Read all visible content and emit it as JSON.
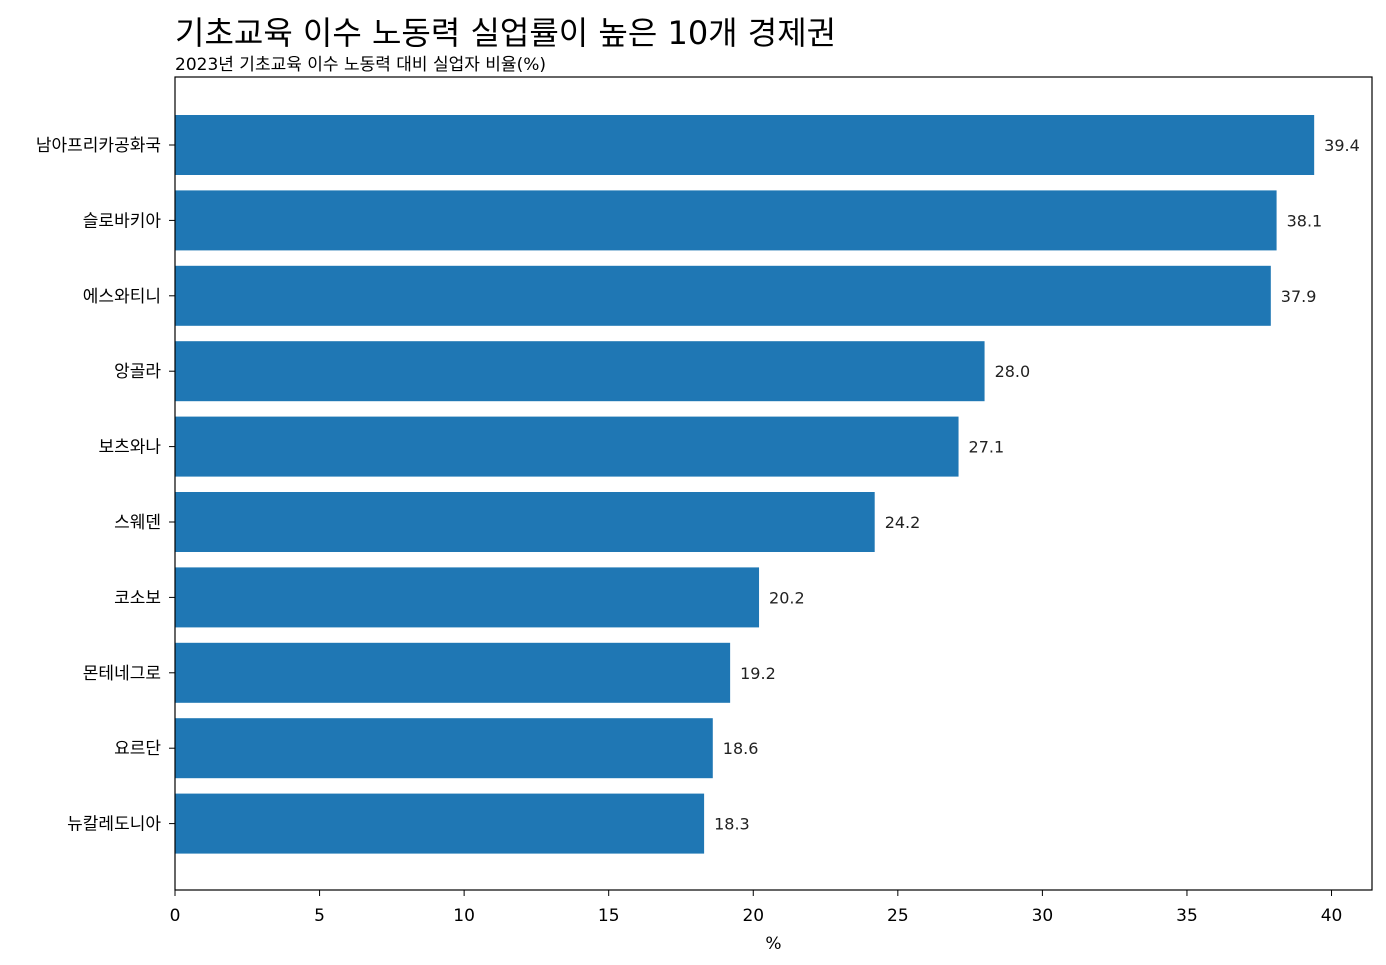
{
  "chart_data": {
    "type": "bar",
    "orientation": "horizontal",
    "title": "기초교육 이수 노동력 실업률이 높은 10개 경제권",
    "subtitle": "2023년 기초교육 이수 노동력 대비 실업자 비율(%)",
    "xlabel": "%",
    "ylabel": "",
    "xlim": [
      0,
      41.4
    ],
    "xticks": [
      0,
      5,
      10,
      15,
      20,
      25,
      30,
      35,
      40
    ],
    "grid": false,
    "categories": [
      "남아프리카공화국",
      "슬로바키아",
      "에스와티니",
      "앙골라",
      "보츠와나",
      "스웨덴",
      "코소보",
      "몬테네그로",
      "요르단",
      "뉴칼레도니아"
    ],
    "values": [
      39.4,
      38.1,
      37.9,
      28.0,
      27.1,
      24.2,
      20.2,
      19.2,
      18.6,
      18.3
    ],
    "data_labels": [
      "39.4",
      "38.1",
      "37.9",
      "28.0",
      "27.1",
      "24.2",
      "20.2",
      "19.2",
      "18.6",
      "18.3"
    ],
    "bar_color": "#1f77b4"
  }
}
